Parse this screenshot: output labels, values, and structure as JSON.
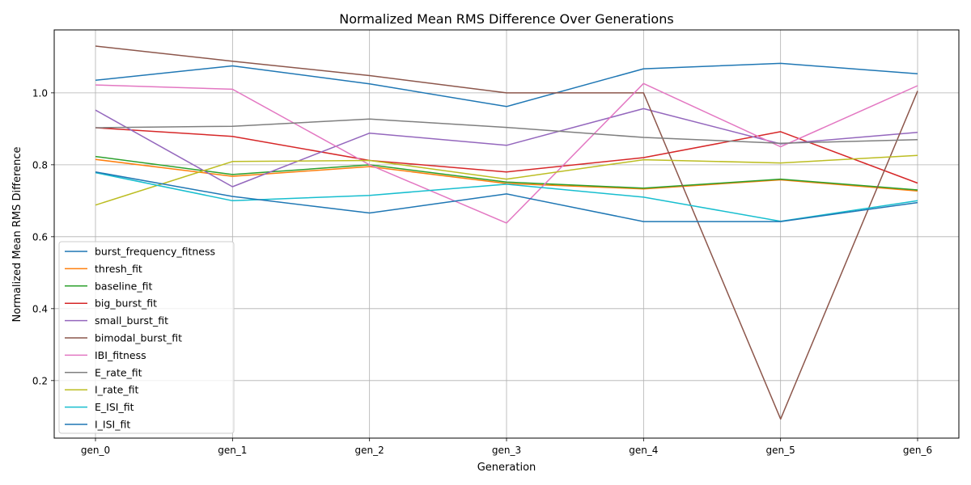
{
  "chart_data": {
    "type": "line",
    "title": "Normalized Mean RMS Difference Over Generations",
    "xlabel": "Generation",
    "ylabel": "Normalized Mean RMS Difference",
    "categories": [
      "gen_0",
      "gen_1",
      "gen_2",
      "gen_3",
      "gen_4",
      "gen_5",
      "gen_6"
    ],
    "ylim": [
      0.04,
      1.175
    ],
    "yticks": [
      0.2,
      0.4,
      0.6,
      0.8,
      1.0
    ],
    "ytick_labels": [
      "0.2",
      "0.4",
      "0.6",
      "0.8",
      "1.0"
    ],
    "grid": true,
    "legend_position": "lower-left",
    "series": [
      {
        "name": "burst_frequency_fitness",
        "color": "#1f77b4",
        "values": [
          1.035,
          1.075,
          1.025,
          0.962,
          1.067,
          1.082,
          1.053
        ]
      },
      {
        "name": "thresh_fit",
        "color": "#ff7f0e",
        "values": [
          0.815,
          0.768,
          0.795,
          0.748,
          0.733,
          0.758,
          0.727
        ]
      },
      {
        "name": "baseline_fit",
        "color": "#2ca02c",
        "values": [
          0.823,
          0.773,
          0.8,
          0.752,
          0.735,
          0.76,
          0.73
        ]
      },
      {
        "name": "big_burst_fit",
        "color": "#d62728",
        "values": [
          0.903,
          0.879,
          0.812,
          0.78,
          0.82,
          0.892,
          0.749
        ]
      },
      {
        "name": "small_burst_fit",
        "color": "#9467bd",
        "values": [
          0.952,
          0.739,
          0.888,
          0.854,
          0.956,
          0.858,
          0.89
        ]
      },
      {
        "name": "bimodal_burst_fit",
        "color": "#8c564b",
        "values": [
          1.13,
          1.088,
          1.048,
          1.0,
          1.0,
          0.093,
          1.005
        ]
      },
      {
        "name": "IBI_fitness",
        "color": "#e377c2",
        "values": [
          1.022,
          1.01,
          0.8,
          0.638,
          1.026,
          0.85,
          1.02
        ]
      },
      {
        "name": "E_rate_fit",
        "color": "#7f7f7f",
        "values": [
          0.903,
          0.907,
          0.927,
          0.904,
          0.876,
          0.86,
          0.87
        ]
      },
      {
        "name": "I_rate_fit",
        "color": "#bcbd22",
        "values": [
          0.688,
          0.809,
          0.812,
          0.76,
          0.814,
          0.805,
          0.826
        ]
      },
      {
        "name": "E_ISI_fit",
        "color": "#17becf",
        "values": [
          0.778,
          0.7,
          0.715,
          0.746,
          0.71,
          0.643,
          0.7
        ]
      },
      {
        "name": "I_ISI_fit",
        "color": "#1f77b4",
        "values": [
          0.78,
          0.712,
          0.666,
          0.719,
          0.642,
          0.642,
          0.695
        ]
      }
    ]
  }
}
